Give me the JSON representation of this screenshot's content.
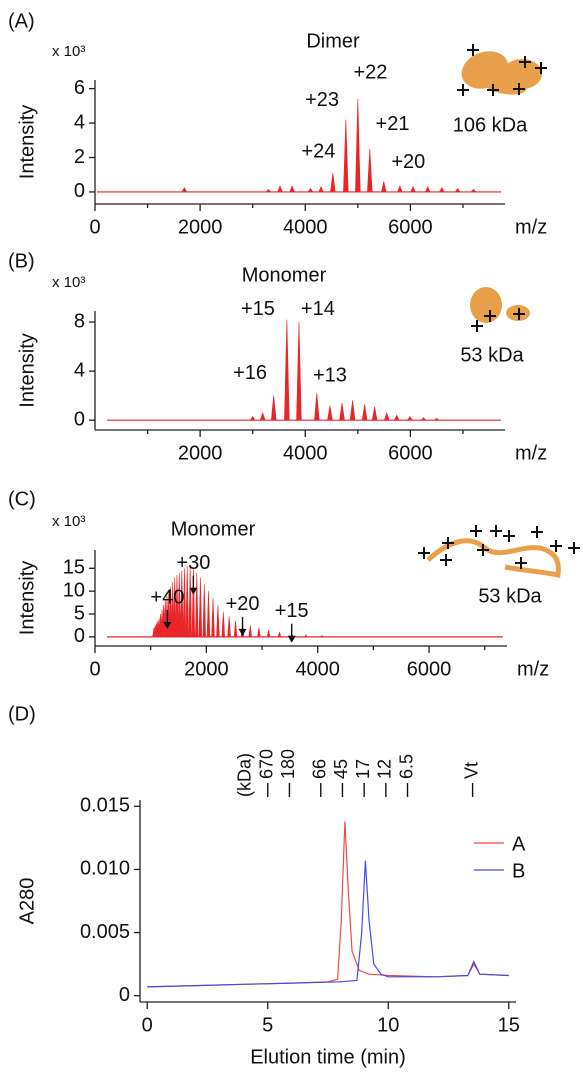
{
  "chart_data": [
    {
      "type": "spectrum",
      "panel": "(A)",
      "title": "Dimer",
      "multiplier": "x 10³",
      "ylabel": "Intensity",
      "xlabel": "m/z",
      "inset_label": "106 kDa",
      "xlim": [
        0,
        7800
      ],
      "ylim": [
        -0.7,
        6.5
      ],
      "xticks": [
        0,
        2000,
        4000,
        6000
      ],
      "xminorticks": [
        1000,
        3000,
        5000,
        7000
      ],
      "yticks": [
        0,
        2,
        4,
        6
      ],
      "color": "#e8262a",
      "x": [
        1700,
        3300,
        3520,
        3750,
        4100,
        4300,
        4525,
        4772,
        5000,
        5228,
        5494,
        5800,
        6050,
        6330,
        6600,
        6900,
        7200
      ],
      "values": [
        0.25,
        0.15,
        0.35,
        0.35,
        0.2,
        0.3,
        1.1,
        4.2,
        5.4,
        2.5,
        0.6,
        0.35,
        0.3,
        0.3,
        0.25,
        0.2,
        0.15
      ],
      "annotations": [
        {
          "text": "+24",
          "x": 4250,
          "y": 2.3
        },
        {
          "text": "+23",
          "x": 4320,
          "y": 5.3
        },
        {
          "text": "+22",
          "x": 5240,
          "y": 6.9
        },
        {
          "text": "+21",
          "x": 5660,
          "y": 3.9
        },
        {
          "text": "+20",
          "x": 5960,
          "y": 1.7
        }
      ]
    },
    {
      "type": "spectrum",
      "panel": "(B)",
      "title": "Monomer",
      "multiplier": "x 10³",
      "ylabel": "Intensity",
      "xlabel": "m/z",
      "inset_label": "53 kDa",
      "xlim": [
        0,
        7800
      ],
      "ylim": [
        -0.8,
        8.9
      ],
      "xticks": [
        2000,
        4000,
        6000
      ],
      "xminorticks": [
        1000,
        3000,
        5000,
        7000
      ],
      "yticks": [
        0,
        4,
        8
      ],
      "color": "#e8262a",
      "x": [
        3000,
        3190,
        3400,
        3650,
        3880,
        4220,
        4470,
        4700,
        4900,
        5130,
        5320,
        5550,
        5740,
        5990,
        6250,
        6500
      ],
      "values": [
        0.3,
        0.6,
        2.0,
        8.2,
        8.0,
        2.2,
        1.2,
        1.4,
        1.6,
        1.3,
        1.1,
        0.6,
        0.4,
        0.3,
        0.2,
        0.15
      ],
      "annotations": [
        {
          "text": "+15",
          "x": 3100,
          "y": 9.0
        },
        {
          "text": "+14",
          "x": 4240,
          "y": 9.0
        },
        {
          "text": "+16",
          "x": 2950,
          "y": 3.8
        },
        {
          "text": "+13",
          "x": 4470,
          "y": 3.6
        }
      ]
    },
    {
      "type": "spectrum",
      "panel": "(C)",
      "title": "Monomer",
      "multiplier": "x 10³",
      "ylabel": "Intensity",
      "xlabel": "m/z",
      "inset_label": "53 kDa",
      "xlim": [
        0,
        7400
      ],
      "ylim": [
        -2,
        19
      ],
      "xticks": [
        0,
        2000,
        4000,
        6000
      ],
      "xminorticks": [
        1000,
        3000,
        5000,
        7000
      ],
      "yticks": [
        0,
        5,
        10,
        15
      ],
      "color": "#e8262a",
      "x": [
        1060,
        1082,
        1104,
        1128,
        1152,
        1178,
        1205,
        1233,
        1262,
        1293,
        1325,
        1359,
        1395,
        1432,
        1472,
        1514,
        1559,
        1606,
        1656,
        1710,
        1767,
        1828,
        1893,
        1963,
        2038,
        2120,
        2208,
        2304,
        2409,
        2524,
        2650,
        2789,
        2944,
        3118,
        3313,
        3533,
        3786,
        4077
      ],
      "values": [
        2,
        2.5,
        3,
        3.5,
        4,
        5,
        6,
        7,
        8,
        9,
        10,
        11,
        12,
        13,
        13.5,
        14,
        14.5,
        15,
        15.5,
        15.5,
        15,
        14,
        13,
        11.5,
        10,
        8.5,
        7,
        5.5,
        4.5,
        3.5,
        3,
        2.5,
        2,
        1.5,
        1,
        0.7,
        0.4,
        0.3
      ],
      "annotations": [
        {
          "text": "+40",
          "x": 1300,
          "y": 8.5,
          "arrow": true
        },
        {
          "text": "+30",
          "x": 1767,
          "y": 16,
          "arrow": true
        },
        {
          "text": "+20",
          "x": 2650,
          "y": 7,
          "arrow": true
        },
        {
          "text": "+15",
          "x": 3533,
          "y": 5.5,
          "arrow": true
        }
      ]
    },
    {
      "type": "line",
      "panel": "(D)",
      "ylabel": "A280",
      "xlabel": "Elution time (min)",
      "marker_unit": "(kDa)",
      "markers": [
        {
          "label": "670",
          "x": 5.0
        },
        {
          "label": "180",
          "x": 5.9
        },
        {
          "label": "66",
          "x": 7.2
        },
        {
          "label": "45",
          "x": 8.1
        },
        {
          "label": "17",
          "x": 9.0
        },
        {
          "label": "12",
          "x": 9.9
        },
        {
          "label": "6.5",
          "x": 10.8
        },
        {
          "label": "Vt",
          "x": 13.5
        }
      ],
      "xlim": [
        -0.3,
        15.3
      ],
      "ylim": [
        -0.0005,
        0.0155
      ],
      "xticks": [
        0,
        5,
        10,
        15
      ],
      "yticks": [
        0,
        0.005,
        {
          "value": 0.01,
          "label": "0.010"
        },
        0.015
      ],
      "legend": "right",
      "series": [
        {
          "name": "A",
          "color": "#f04848",
          "x": [
            0,
            2,
            4,
            6,
            7.5,
            7.9,
            8.05,
            8.2,
            8.35,
            8.5,
            8.8,
            9.2,
            10,
            12,
            13.3,
            13.55,
            13.8,
            15
          ],
          "values": [
            0.0007,
            0.0008,
            0.0009,
            0.001,
            0.0011,
            0.0013,
            0.006,
            0.0138,
            0.008,
            0.0035,
            0.002,
            0.0017,
            0.0016,
            0.0015,
            0.0016,
            0.0025,
            0.0017,
            0.0016
          ]
        },
        {
          "name": "B",
          "color": "#4a4ae8",
          "x": [
            0,
            2,
            4,
            6,
            8,
            8.7,
            8.9,
            9.05,
            9.2,
            9.4,
            9.7,
            10,
            12,
            13.3,
            13.55,
            13.8,
            15
          ],
          "values": [
            0.0007,
            0.0008,
            0.0009,
            0.001,
            0.0011,
            0.0012,
            0.005,
            0.0107,
            0.006,
            0.0025,
            0.0017,
            0.0015,
            0.0015,
            0.0016,
            0.0027,
            0.0017,
            0.0016
          ]
        }
      ]
    }
  ]
}
